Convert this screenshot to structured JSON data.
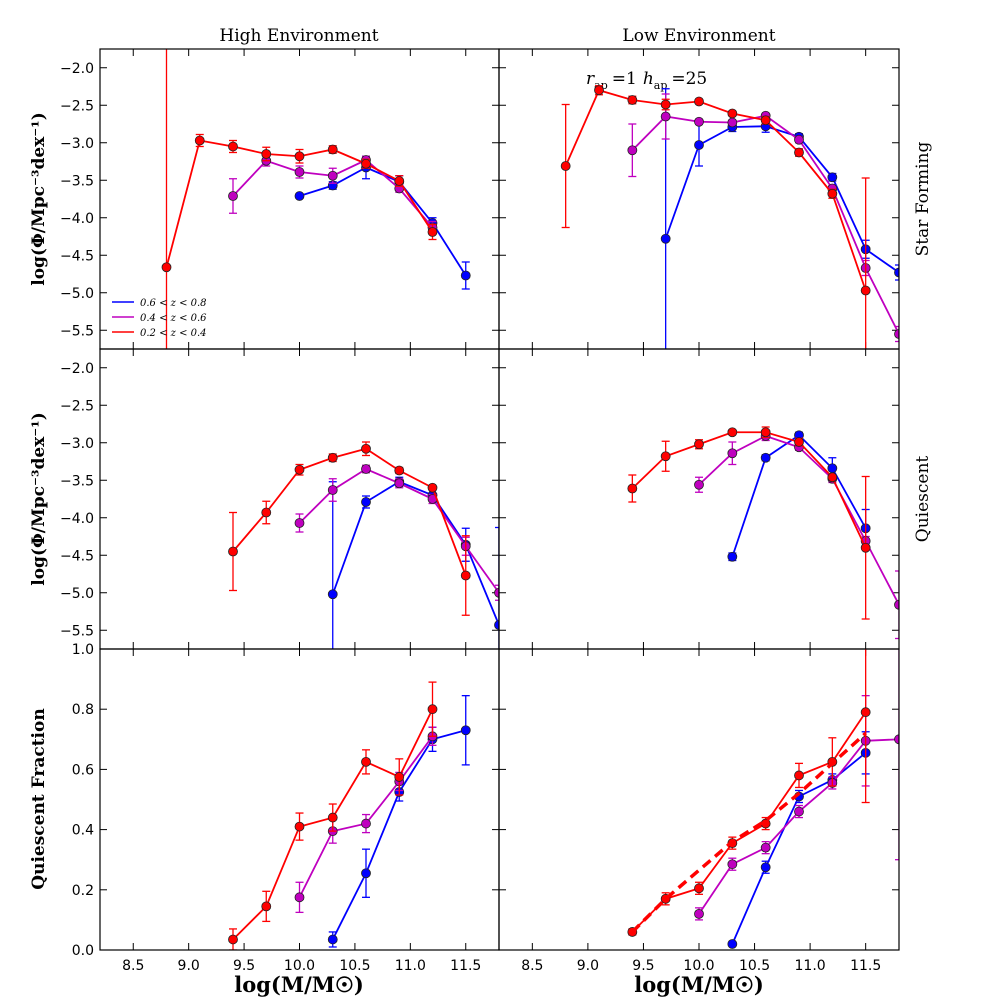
{
  "figure": {
    "col_titles": [
      "High Environment",
      "Low Environment"
    ],
    "row_titles": [
      "Star Forming",
      "Quiescent"
    ],
    "ylabel_top": "log(Φ/Mpc⁻³dex⁻¹)",
    "ylabel_bottom": "Quiescent Fraction",
    "xlabel": "log(M/M☉)",
    "annotation": "r_ap = 1  h_ap = 25",
    "annotation_parts": {
      "r": "r",
      "r_sub": "ap",
      "r_val": "=1",
      "h": "h",
      "h_sub": "ap",
      "h_val": "=25"
    }
  },
  "chart_data": [
    {
      "type": "line",
      "panel": "Star Forming / High Environment",
      "ylabel": "log(Φ/Mpc⁻³dex⁻¹)",
      "xlim": [
        8.2,
        11.8
      ],
      "ylim": [
        -5.75,
        -1.75
      ],
      "xticks": [],
      "yticks": [
        -5.5,
        -5.0,
        -4.5,
        -4.0,
        -3.5,
        -3.0,
        -2.5,
        -2.0
      ],
      "ytick_labels": [
        "−5.5",
        "−5.0",
        "−4.5",
        "−4.0",
        "−3.5",
        "−3.0",
        "−2.5",
        "−2.0"
      ],
      "legend": {
        "location": "lower-left",
        "entries": [
          "0.6 < z < 0.8",
          "0.4 < z < 0.6",
          "0.2 < z < 0.4"
        ],
        "colors": [
          "#0000ff",
          "#bf00bf",
          "#ff0000"
        ]
      },
      "series": [
        {
          "name": "0.6 < z < 0.8",
          "color": "#0000ff",
          "x": [
            10.0,
            10.3,
            10.6,
            10.9,
            11.2,
            11.5
          ],
          "y": [
            -3.71,
            -3.57,
            -3.33,
            -3.52,
            -4.07,
            -4.77
          ],
          "err": [
            0.03,
            0.05,
            0.15,
            0.08,
            0.07,
            0.18
          ]
        },
        {
          "name": "0.4 < z < 0.6",
          "color": "#bf00bf",
          "x": [
            9.4,
            9.7,
            10.0,
            10.3,
            10.6,
            10.9,
            11.2
          ],
          "y": [
            -3.71,
            -3.24,
            -3.39,
            -3.44,
            -3.23,
            -3.61,
            -4.13
          ],
          "err": [
            0.23,
            0.07,
            0.08,
            0.1,
            0.05,
            0.05,
            0.08
          ]
        },
        {
          "name": "0.2 < z < 0.4",
          "color": "#ff0000",
          "x": [
            8.8,
            9.1,
            9.4,
            9.7,
            10.0,
            10.3,
            10.6,
            10.9,
            11.2
          ],
          "y": [
            -4.66,
            -2.97,
            -3.05,
            -3.15,
            -3.18,
            -3.09,
            -3.28,
            -3.51,
            -4.19
          ],
          "err": [
            3.5,
            0.08,
            0.08,
            0.09,
            0.09,
            0.05,
            0.06,
            0.07,
            0.1
          ]
        }
      ]
    },
    {
      "type": "line",
      "panel": "Star Forming / Low Environment",
      "xlim": [
        8.2,
        11.8
      ],
      "ylim": [
        -5.75,
        -1.75
      ],
      "xticks": [],
      "yticks": [],
      "series": [
        {
          "name": "0.6 < z < 0.8",
          "color": "#0000ff",
          "x": [
            9.7,
            10.0,
            10.3,
            10.6,
            10.9,
            11.2,
            11.5,
            11.8
          ],
          "y": [
            -4.28,
            -3.03,
            -2.79,
            -2.78,
            -2.92,
            -3.46,
            -4.42,
            -4.73
          ],
          "err": [
            2.0,
            0.28,
            0.06,
            0.08,
            0.04,
            0.05,
            0.12,
            0.1
          ]
        },
        {
          "name": "0.4 < z < 0.6",
          "color": "#bf00bf",
          "x": [
            9.4,
            9.7,
            10.0,
            10.3,
            10.6,
            10.9,
            11.2,
            11.5,
            11.8
          ],
          "y": [
            -3.1,
            -2.65,
            -2.72,
            -2.73,
            -2.64,
            -2.96,
            -3.61,
            -4.67,
            -5.55
          ],
          "err": [
            0.35,
            0.3,
            0.03,
            0.03,
            0.03,
            0.04,
            0.04,
            0.1,
            0.1
          ]
        },
        {
          "name": "0.2 < z < 0.4",
          "color": "#ff0000",
          "x": [
            8.8,
            9.1,
            9.4,
            9.7,
            10.0,
            10.3,
            10.6,
            10.9,
            11.2,
            11.5
          ],
          "y": [
            -3.31,
            -2.3,
            -2.43,
            -2.49,
            -2.45,
            -2.61,
            -2.7,
            -3.13,
            -3.68,
            -4.97
          ],
          "err": [
            0.82,
            0.06,
            0.05,
            0.07,
            0.03,
            0.03,
            0.05,
            0.05,
            0.06,
            1.5
          ]
        }
      ]
    },
    {
      "type": "line",
      "panel": "Quiescent / High Environment",
      "ylabel": "log(Φ/Mpc⁻³dex⁻¹)",
      "xlim": [
        8.2,
        11.8
      ],
      "ylim": [
        -5.75,
        -1.75
      ],
      "xticks": [],
      "yticks": [
        -5.5,
        -5.0,
        -4.5,
        -4.0,
        -3.5,
        -3.0,
        -2.5,
        -2.0
      ],
      "ytick_labels": [
        "−5.5",
        "−5.0",
        "−4.5",
        "−4.0",
        "−3.5",
        "−3.0",
        "−2.5",
        "−2.0"
      ],
      "series": [
        {
          "name": "0.6 < z < 0.8",
          "color": "#0000ff",
          "x": [
            10.3,
            10.6,
            10.9,
            11.2,
            11.5,
            11.8
          ],
          "y": [
            -5.02,
            -3.79,
            -3.52,
            -3.7,
            -4.36,
            -5.43
          ],
          "err": [
            1.5,
            0.08,
            0.06,
            0.07,
            0.22,
            1.3
          ]
        },
        {
          "name": "0.4 < z < 0.6",
          "color": "#bf00bf",
          "x": [
            10.0,
            10.3,
            10.6,
            10.9,
            11.2,
            11.5,
            11.8
          ],
          "y": [
            -4.07,
            -3.63,
            -3.35,
            -3.54,
            -3.75,
            -4.38,
            -5.0
          ],
          "err": [
            0.12,
            0.15,
            0.05,
            0.06,
            0.06,
            0.12,
            0.1
          ]
        },
        {
          "name": "0.2 < z < 0.4",
          "color": "#ff0000",
          "x": [
            9.4,
            9.7,
            10.0,
            10.3,
            10.6,
            10.9,
            11.2,
            11.5
          ],
          "y": [
            -4.45,
            -3.93,
            -3.36,
            -3.2,
            -3.08,
            -3.37,
            -3.6,
            -4.77
          ],
          "err": [
            0.52,
            0.15,
            0.07,
            0.05,
            0.09,
            0.04,
            0.03,
            0.53
          ]
        }
      ]
    },
    {
      "type": "line",
      "panel": "Quiescent / Low Environment",
      "xlim": [
        8.2,
        11.8
      ],
      "ylim": [
        -5.75,
        -1.75
      ],
      "xticks": [],
      "yticks": [],
      "series": [
        {
          "name": "0.6 < z < 0.8",
          "color": "#0000ff",
          "x": [
            10.3,
            10.6,
            10.9,
            11.2,
            11.5
          ],
          "y": [
            -4.52,
            -3.2,
            -2.9,
            -3.34,
            -4.14
          ],
          "err": [
            0.05,
            0.04,
            0.04,
            0.14,
            0.25
          ]
        },
        {
          "name": "0.4 < z < 0.6",
          "color": "#bf00bf",
          "x": [
            10.0,
            10.3,
            10.6,
            10.9,
            11.2,
            11.5,
            11.8
          ],
          "y": [
            -3.56,
            -3.14,
            -2.91,
            -3.06,
            -3.48,
            -4.31,
            -5.16
          ],
          "err": [
            0.1,
            0.15,
            0.06,
            0.04,
            0.05,
            0.06,
            0.45
          ]
        },
        {
          "name": "0.2 < z < 0.4",
          "color": "#ff0000",
          "x": [
            9.4,
            9.7,
            10.0,
            10.3,
            10.6,
            10.9,
            11.2,
            11.5
          ],
          "y": [
            -3.61,
            -3.18,
            -3.02,
            -2.86,
            -2.86,
            -2.99,
            -3.46,
            -4.4
          ],
          "err": [
            0.18,
            0.2,
            0.06,
            0.03,
            0.07,
            0.05,
            0.03,
            0.95
          ]
        }
      ]
    },
    {
      "type": "line",
      "panel": "Quiescent Fraction / High Environment",
      "ylabel": "Quiescent Fraction",
      "xlabel": "log(M/M☉)",
      "xlim": [
        8.2,
        11.8
      ],
      "ylim": [
        0.0,
        1.0
      ],
      "xticks": [
        8.5,
        9.0,
        9.5,
        10.0,
        10.5,
        11.0,
        11.5
      ],
      "xtick_labels": [
        "8.5",
        "9.0",
        "9.5",
        "10.0",
        "10.5",
        "11.0",
        "11.5"
      ],
      "yticks": [
        0.0,
        0.2,
        0.4,
        0.6,
        0.8,
        1.0
      ],
      "ytick_labels": [
        "0.0",
        "0.2",
        "0.4",
        "0.6",
        "0.8",
        "1.0"
      ],
      "series": [
        {
          "name": "0.6 < z < 0.8",
          "color": "#0000ff",
          "x": [
            10.3,
            10.6,
            10.9,
            11.2,
            11.5
          ],
          "y": [
            0.035,
            0.255,
            0.525,
            0.7,
            0.73
          ],
          "err": [
            0.025,
            0.08,
            0.03,
            0.04,
            0.115
          ]
        },
        {
          "name": "0.4 < z < 0.6",
          "color": "#bf00bf",
          "x": [
            10.0,
            10.3,
            10.6,
            10.9,
            11.2
          ],
          "y": [
            0.175,
            0.395,
            0.42,
            0.56,
            0.71
          ],
          "err": [
            0.05,
            0.04,
            0.03,
            0.03,
            0.03
          ]
        },
        {
          "name": "0.2 < z < 0.4",
          "color": "#ff0000",
          "x": [
            9.4,
            9.7,
            10.0,
            10.3,
            10.6,
            10.9,
            11.2
          ],
          "y": [
            0.035,
            0.145,
            0.41,
            0.44,
            0.625,
            0.575,
            0.8
          ],
          "err": [
            0.035,
            0.05,
            0.045,
            0.045,
            0.04,
            0.06,
            0.09
          ]
        }
      ]
    },
    {
      "type": "line",
      "panel": "Quiescent Fraction / Low Environment",
      "xlabel": "log(M/M☉)",
      "xlim": [
        8.2,
        11.8
      ],
      "ylim": [
        0.0,
        1.0
      ],
      "xticks": [
        8.5,
        9.0,
        9.5,
        10.0,
        10.5,
        11.0,
        11.5
      ],
      "xtick_labels": [
        "8.5",
        "9.0",
        "9.5",
        "10.0",
        "10.5",
        "11.0",
        "11.5"
      ],
      "yticks": [],
      "series": [
        {
          "name": "0.6 < z < 0.8",
          "color": "#0000ff",
          "x": [
            10.3,
            10.6,
            10.9,
            11.2,
            11.5
          ],
          "y": [
            0.02,
            0.275,
            0.51,
            0.565,
            0.655
          ],
          "err": [
            0.0,
            0.02,
            0.02,
            0.02,
            0.07
          ]
        },
        {
          "name": "0.4 < z < 0.6",
          "color": "#bf00bf",
          "x": [
            10.0,
            10.3,
            10.6,
            10.9,
            11.2,
            11.5,
            11.8
          ],
          "y": [
            0.12,
            0.285,
            0.34,
            0.46,
            0.555,
            0.695,
            0.7
          ],
          "err": [
            0.02,
            0.02,
            0.02,
            0.02,
            0.02,
            0.15,
            0.4
          ]
        },
        {
          "name": "0.2 < z < 0.4",
          "color": "#ff0000",
          "x": [
            9.4,
            9.7,
            10.0,
            10.3,
            10.6,
            10.9,
            11.2,
            11.5
          ],
          "y": [
            0.06,
            0.17,
            0.205,
            0.355,
            0.42,
            0.58,
            0.625,
            0.79
          ],
          "err": [
            0.01,
            0.02,
            0.02,
            0.02,
            0.02,
            0.04,
            0.08,
            0.3
          ]
        }
      ],
      "dashed_series": [
        {
          "color": "#ff0000",
          "x": [
            9.4,
            9.7,
            10.0,
            10.3,
            10.6,
            10.9,
            11.2,
            11.5
          ],
          "y": [
            0.06,
            0.17,
            0.265,
            0.36,
            0.43,
            0.52,
            0.62,
            0.72
          ]
        }
      ]
    }
  ]
}
